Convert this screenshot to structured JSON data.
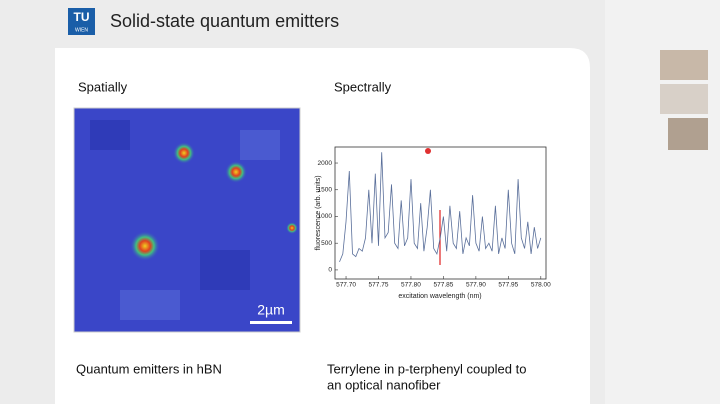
{
  "header": {
    "logo": [
      "TU",
      "WIEN"
    ],
    "title": "Solid-state quantum emitters"
  },
  "slide": {
    "left_heading": "Spatially",
    "right_heading": "Spectrally",
    "scale_bar": "2µm",
    "left_caption": "Quantum emitters in hBN",
    "right_caption": [
      "Terrylene in p-terphenyl coupled to",
      "an optical nanofiber"
    ]
  },
  "chart_data": {
    "type": "line",
    "xlabel": "excitation wavelength (nm)",
    "ylabel": "fluorescence (arb. units)",
    "x": [
      577.69,
      577.695,
      577.7,
      577.705,
      577.71,
      577.715,
      577.72,
      577.725,
      577.73,
      577.735,
      577.74,
      577.745,
      577.75,
      577.755,
      577.76,
      577.765,
      577.77,
      577.775,
      577.78,
      577.785,
      577.79,
      577.795,
      577.8,
      577.805,
      577.81,
      577.815,
      577.82,
      577.825,
      577.83,
      577.835,
      577.84,
      577.845,
      577.85,
      577.855,
      577.86,
      577.865,
      577.87,
      577.875,
      577.88,
      577.885,
      577.89,
      577.895,
      577.9,
      577.905,
      577.91,
      577.915,
      577.92,
      577.925,
      577.93,
      577.935,
      577.94,
      577.945,
      577.95,
      577.955,
      577.96,
      577.965,
      577.97,
      577.975,
      577.98,
      577.985,
      577.99,
      577.995,
      578.0
    ],
    "series": [
      {
        "color": "#5a6f9a",
        "values": [
          150,
          300,
          900,
          1850,
          300,
          250,
          400,
          350,
          600,
          1500,
          500,
          1800,
          450,
          2200,
          600,
          700,
          1600,
          500,
          400,
          1300,
          450,
          600,
          1700,
          500,
          400,
          1250,
          350,
          800,
          1500,
          400,
          300,
          600,
          1000,
          350,
          1200,
          500,
          400,
          1100,
          300,
          600,
          450,
          1400,
          500,
          350,
          1000,
          400,
          500,
          350,
          1200,
          300,
          600,
          400,
          1500,
          500,
          300,
          1700,
          600,
          400,
          900,
          300,
          800,
          400,
          600
        ]
      }
    ],
    "xlim": [
      577.683,
      578.008
    ],
    "ylim": [
      -170,
      2300
    ],
    "xticks": [
      {
        "value": 577.7,
        "label": "577.70"
      },
      {
        "value": 577.75,
        "label": "577.75"
      },
      {
        "value": 577.8,
        "label": "577.80"
      },
      {
        "value": 577.85,
        "label": "577.85"
      },
      {
        "value": 577.9,
        "label": "577.90"
      },
      {
        "value": 577.95,
        "label": "577.95"
      },
      {
        "value": 578.0,
        "label": "578.00"
      }
    ],
    "yticks": [
      0,
      500,
      1000,
      1500,
      2000
    ]
  }
}
